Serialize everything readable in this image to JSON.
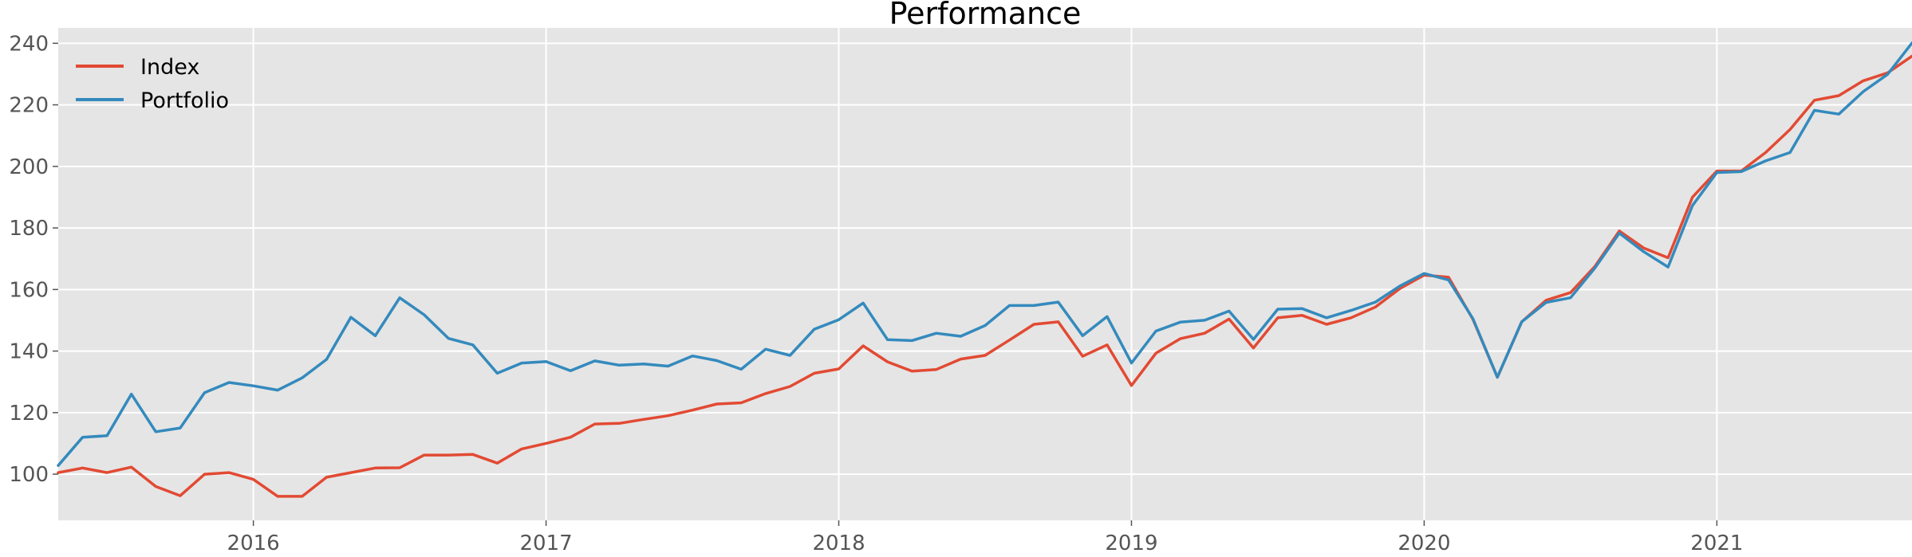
{
  "chart_data": {
    "type": "line",
    "title": "Performance",
    "xlabel": "",
    "ylabel": "",
    "x_start": "2015-05",
    "x_end": "2021-09",
    "ylim": [
      85,
      245
    ],
    "x_ticks": [
      "2016",
      "2017",
      "2018",
      "2019",
      "2020",
      "2021"
    ],
    "y_ticks": [
      100,
      120,
      140,
      160,
      180,
      200,
      220,
      240
    ],
    "grid": true,
    "legend_position": "top-left",
    "background_color": "#e5e5e5",
    "grid_color": "#ffffff",
    "x": [
      "2015-05",
      "2015-06",
      "2015-07",
      "2015-08",
      "2015-09",
      "2015-10",
      "2015-11",
      "2015-12",
      "2016-01",
      "2016-02",
      "2016-03",
      "2016-04",
      "2016-05",
      "2016-06",
      "2016-07",
      "2016-08",
      "2016-09",
      "2016-10",
      "2016-11",
      "2016-12",
      "2017-01",
      "2017-02",
      "2017-03",
      "2017-04",
      "2017-05",
      "2017-06",
      "2017-07",
      "2017-08",
      "2017-09",
      "2017-10",
      "2017-11",
      "2017-12",
      "2018-01",
      "2018-02",
      "2018-03",
      "2018-04",
      "2018-05",
      "2018-06",
      "2018-07",
      "2018-08",
      "2018-09",
      "2018-10",
      "2018-11",
      "2018-12",
      "2019-01",
      "2019-02",
      "2019-03",
      "2019-04",
      "2019-05",
      "2019-06",
      "2019-07",
      "2019-08",
      "2019-09",
      "2019-10",
      "2019-11",
      "2019-12",
      "2020-01",
      "2020-02",
      "2020-03",
      "2020-04",
      "2020-05",
      "2020-06",
      "2020-07",
      "2020-08",
      "2020-09",
      "2020-10",
      "2020-11",
      "2020-12",
      "2021-01",
      "2021-02",
      "2021-03",
      "2021-04",
      "2021-05",
      "2021-06",
      "2021-07",
      "2021-08",
      "2021-09"
    ],
    "series": [
      {
        "name": "Index",
        "color": "#e24a33",
        "values": [
          100.5,
          102,
          100.5,
          102.3,
          96,
          93,
          100,
          100.5,
          98.3,
          92.8,
          92.8,
          99,
          100.5,
          102,
          102.1,
          106.2,
          106.2,
          106.4,
          103.6,
          108.2,
          110,
          112,
          116.3,
          116.5,
          117.8,
          119,
          120.8,
          122.8,
          123.2,
          126.2,
          128.5,
          132.8,
          134.2,
          141.7,
          136.5,
          133.5,
          134,
          137.4,
          138.6,
          143.6,
          148.7,
          149.5,
          138.3,
          142,
          128.8,
          139.3,
          144,
          145.8,
          150.4,
          141,
          150.8,
          151.6,
          148.7,
          150.8,
          154.3,
          160.3,
          164.7,
          164,
          150.3,
          131.5,
          149.5,
          156.5,
          159,
          167.5,
          179,
          173.5,
          170.3,
          190,
          198.5,
          198.5,
          204.5,
          212,
          221.5,
          223,
          227.8,
          230.4,
          235.8
        ]
      },
      {
        "name": "Portfolio",
        "color": "#348abd",
        "values": [
          102.8,
          112,
          112.5,
          126,
          113.8,
          115,
          126.5,
          129.8,
          128.7,
          127.3,
          131.3,
          137.3,
          151,
          145,
          157.3,
          151.8,
          144.1,
          142,
          132.8,
          136.1,
          136.6,
          133.6,
          136.8,
          135.4,
          135.8,
          135.1,
          138.4,
          136.9,
          134.1,
          140.6,
          138.6,
          147.1,
          150.2,
          155.6,
          143.7,
          143.4,
          145.8,
          144.8,
          148.3,
          154.8,
          154.8,
          155.9,
          145,
          151.2,
          136.1,
          146.5,
          149.4,
          150,
          153,
          143.8,
          153.6,
          153.8,
          150.8,
          153.2,
          155.9,
          161.1,
          165.2,
          163.1,
          150.5,
          131.5,
          149.5,
          155.8,
          157.3,
          167,
          178.3,
          172.3,
          167.3,
          187.3,
          198,
          198.3,
          201.8,
          204.5,
          218.2,
          217,
          224.3,
          229.9,
          240.1
        ]
      }
    ]
  }
}
